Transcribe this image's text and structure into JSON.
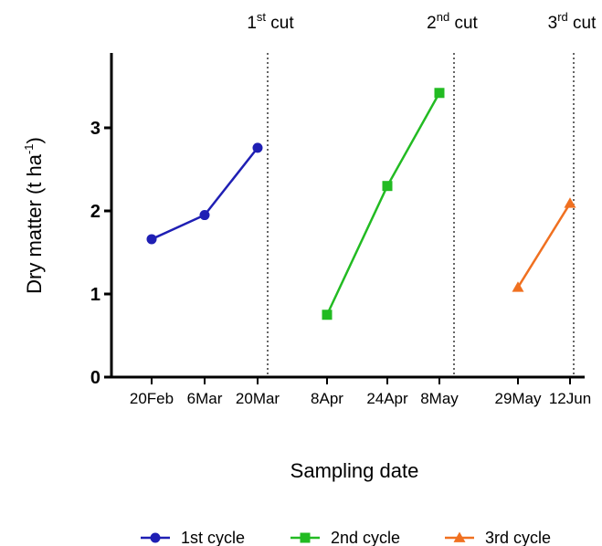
{
  "chart_data": {
    "type": "line",
    "xlabel": "Sampling date",
    "ylabel": {
      "main": "Dry matter (t ha",
      "sup": "-1",
      "close": ")"
    },
    "ylim": [
      0,
      3.9
    ],
    "yticks": [
      "0",
      "1",
      "2",
      "3"
    ],
    "categories": [
      "20Feb",
      "6Mar",
      "20Mar",
      "8Apr",
      "24Apr",
      "8May",
      "29May",
      "12Jun"
    ],
    "cuts": [
      {
        "base": "1",
        "sup": "st",
        "rest": " cut",
        "after": "20Mar"
      },
      {
        "base": "2",
        "sup": "nd",
        "rest": " cut",
        "after": "8May"
      },
      {
        "base": "3",
        "sup": "rd",
        "rest": " cut",
        "after": "12Jun"
      }
    ],
    "series": [
      {
        "name": "1st cycle",
        "color": "#1f1fb4",
        "marker": "circle",
        "x": [
          "20Feb",
          "6Mar",
          "20Mar"
        ],
        "values": [
          1.66,
          1.95,
          2.76
        ]
      },
      {
        "name": "2nd cycle",
        "color": "#22bb22",
        "marker": "square",
        "x": [
          "8Apr",
          "24Apr",
          "8May"
        ],
        "values": [
          0.75,
          2.3,
          3.42
        ]
      },
      {
        "name": "3rd cycle",
        "color": "#f07020",
        "marker": "triangle",
        "x": [
          "29May",
          "12Jun"
        ],
        "values": [
          1.08,
          2.09
        ]
      }
    ],
    "grid": false,
    "legend_position": "bottom"
  }
}
